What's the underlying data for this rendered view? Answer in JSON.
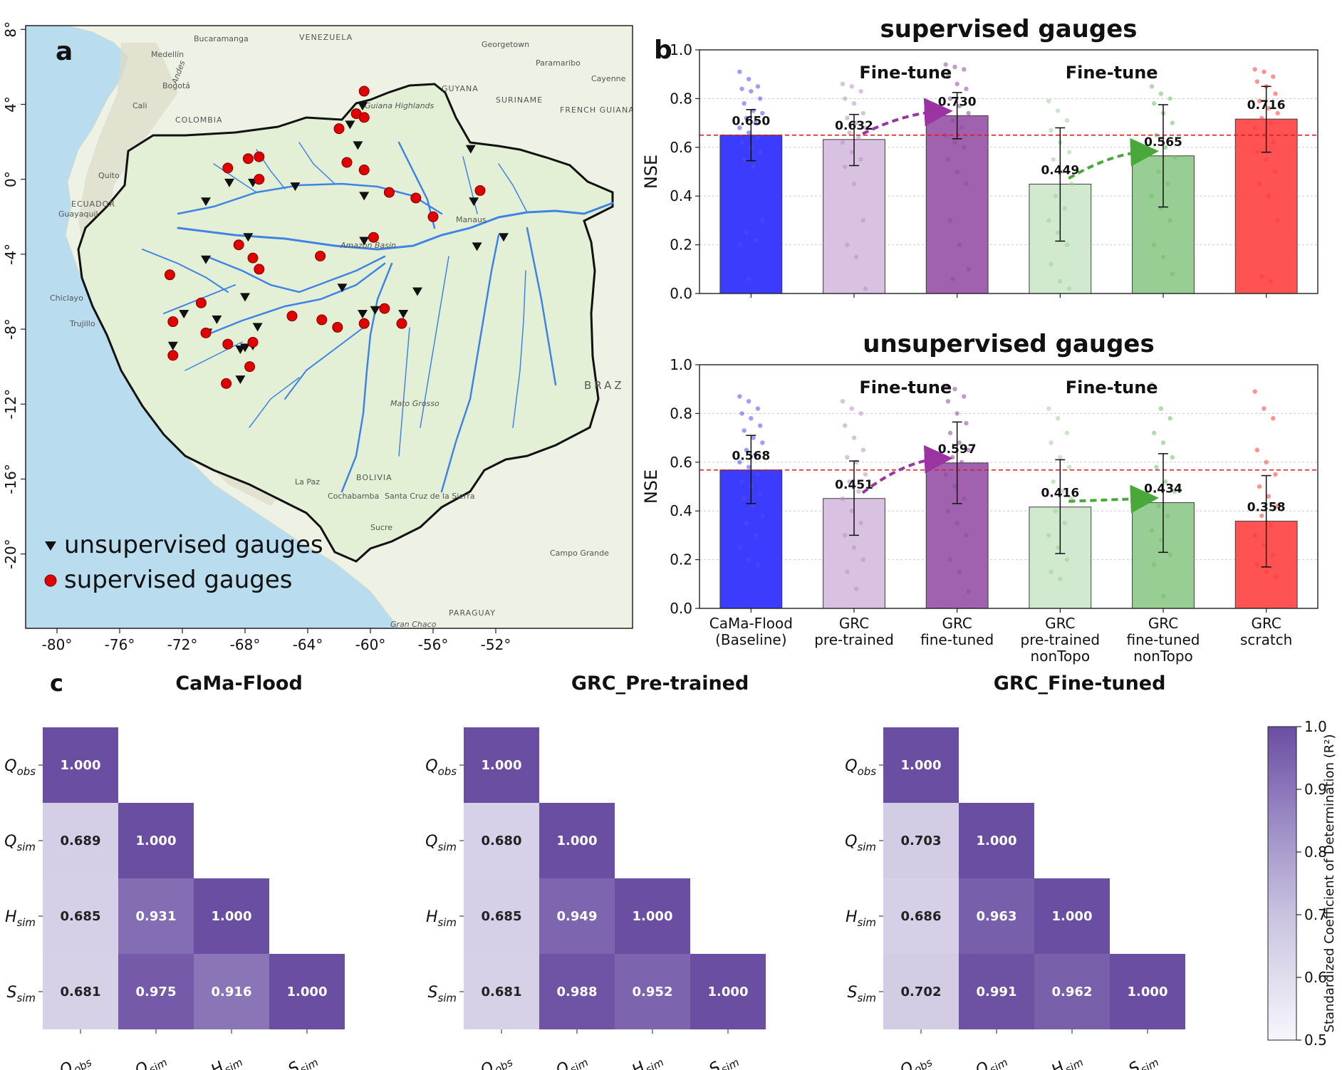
{
  "panel_labels": {
    "a": "a",
    "b": "b",
    "c": "c"
  },
  "colors": {
    "blue": "#3232ff",
    "lightpurple": "#d7bfe0",
    "purple": "#9b5aaa",
    "lightgreen": "#cfe8cd",
    "green": "#93cc8f",
    "red": "#ff4a4a",
    "heat_low": "#f2f1f7",
    "heat_high": "#6a4ea2",
    "arrow_purple": "#9b33a3",
    "arrow_green": "#4aa83a",
    "river": "#3f83e6",
    "basin_fill": "#e4f0d6",
    "ocean": "#b9dcef",
    "land": "#eef2e4"
  },
  "map": {
    "lon_ticks": [
      "-80°",
      "-76°",
      "-72°",
      "-68°",
      "-64°",
      "-60°",
      "-56°",
      "-52°"
    ],
    "lat_ticks": [
      "8°",
      "4°",
      "0°",
      "-4°",
      "-8°",
      "-12°",
      "-16°",
      "-20°"
    ],
    "place_names": [
      "VENEZUELA",
      "Bucaramanga",
      "Medellín",
      "Bogotá",
      "COLOMBIA",
      "Cali",
      "Quito",
      "ECUADOR",
      "Guayaquil",
      "Chiclayo",
      "Trujillo",
      "Georgetown",
      "Paramaribo",
      "Cayenne",
      "SURINAME",
      "FRENCH GUIANA",
      "GUYANA",
      "Manaus",
      "Amazon Basin",
      "La Paz",
      "Cochabamba",
      "Santa Cruz de la Sierra",
      "Sucre",
      "BOLIVIA",
      "Campo Grande",
      "PARAGUAY",
      "BRAZ",
      "Gran Chaco",
      "Andes",
      "Guiana Highlands",
      "Mato Grosso"
    ],
    "legend": [
      {
        "symbol": "triangle",
        "label": "unsupervised gauges"
      },
      {
        "symbol": "circle",
        "label": "supervised gauges"
      }
    ],
    "unsupervised_gauges": [
      [
        -69.0,
        -0.2
      ],
      [
        -70.5,
        -1.2
      ],
      [
        -67.5,
        -0.2
      ],
      [
        -64.8,
        -0.4
      ],
      [
        -61.3,
        2.9
      ],
      [
        -60.8,
        1.8
      ],
      [
        -60.4,
        -0.9
      ],
      [
        -60.4,
        -3.3
      ],
      [
        -53.2,
        -3.6
      ],
      [
        -51.5,
        -3.1
      ],
      [
        -67.8,
        -3.1
      ],
      [
        -70.5,
        -4.3
      ],
      [
        -68.0,
        -6.3
      ],
      [
        -69.8,
        -7.5
      ],
      [
        -70.4,
        -8.2
      ],
      [
        -71.9,
        -7.2
      ],
      [
        -67.2,
        -7.9
      ],
      [
        -68.0,
        -9.0
      ],
      [
        -68.3,
        -9.1
      ],
      [
        -67.5,
        -8.9
      ],
      [
        -72.6,
        -8.9
      ],
      [
        -68.3,
        -10.7
      ],
      [
        -61.8,
        -5.8
      ],
      [
        -60.5,
        -7.2
      ],
      [
        -59.7,
        -7.0
      ],
      [
        -57.0,
        -6.0
      ],
      [
        -57.9,
        -7.2
      ],
      [
        -53.4,
        -1.2
      ],
      [
        -53.6,
        1.6
      ],
      [
        -60.5,
        3.9
      ]
    ],
    "supervised_gauges": [
      [
        -60.4,
        4.7
      ],
      [
        -60.9,
        3.5
      ],
      [
        -60.4,
        3.3
      ],
      [
        -62.0,
        2.7
      ],
      [
        -61.5,
        0.9
      ],
      [
        -60.4,
        0.5
      ],
      [
        -69.1,
        0.6
      ],
      [
        -67.8,
        1.1
      ],
      [
        -67.1,
        1.2
      ],
      [
        -67.1,
        0.0
      ],
      [
        -58.8,
        -0.7
      ],
      [
        -57.1,
        -1.0
      ],
      [
        -56.0,
        -2.0
      ],
      [
        -53.0,
        -0.6
      ],
      [
        -59.8,
        -3.1
      ],
      [
        -63.2,
        -4.1
      ],
      [
        -68.4,
        -3.5
      ],
      [
        -67.5,
        -4.2
      ],
      [
        -67.1,
        -4.8
      ],
      [
        -72.8,
        -5.1
      ],
      [
        -70.8,
        -6.6
      ],
      [
        -72.6,
        -7.6
      ],
      [
        -70.5,
        -8.2
      ],
      [
        -69.1,
        -8.8
      ],
      [
        -67.5,
        -8.7
      ],
      [
        -72.6,
        -9.4
      ],
      [
        -67.7,
        -10.0
      ],
      [
        -69.2,
        -10.9
      ],
      [
        -65.0,
        -7.3
      ],
      [
        -63.1,
        -7.5
      ],
      [
        -62.1,
        -7.9
      ],
      [
        -60.4,
        -7.7
      ],
      [
        -59.1,
        -6.9
      ],
      [
        -58.0,
        -7.7
      ]
    ]
  },
  "chart_data": [
    {
      "type": "bar",
      "title": "supervised gauges",
      "ylabel": "NSE",
      "ylim": [
        0,
        1.0
      ],
      "yticks": [
        "0.0",
        "0.2",
        "0.4",
        "0.6",
        "0.8",
        "1.0"
      ],
      "categories": [
        "CaMa-Flood (Baseline)",
        "GRC pre-trained",
        "GRC fine-tuned",
        "GRC pre-trained nonTopo",
        "GRC fine-tuned nonTopo",
        "GRC scratch"
      ],
      "values": [
        0.65,
        0.632,
        0.73,
        0.449,
        0.565,
        0.716
      ],
      "value_labels": [
        "0.650",
        "0.632",
        "0.730",
        "0.449",
        "0.565",
        "0.716"
      ],
      "error_low": [
        0.545,
        0.525,
        0.635,
        0.215,
        0.355,
        0.58
      ],
      "error_high": [
        0.755,
        0.735,
        0.825,
        0.68,
        0.775,
        0.85
      ],
      "reference_line": 0.65,
      "annotations": [
        "Fine-tune",
        "Fine-tune"
      ],
      "points": [
        [
          0.91,
          0.88,
          0.85,
          0.84,
          0.83,
          0.8,
          0.78,
          0.75,
          0.74,
          0.72,
          0.7,
          0.68,
          0.66,
          0.64,
          0.62,
          0.6,
          0.58,
          0.55,
          0.52,
          0.3,
          0.25,
          0.22,
          0.2,
          0.06
        ],
        [
          0.86,
          0.85,
          0.83,
          0.8,
          0.78,
          0.74,
          0.72,
          0.7,
          0.68,
          0.66,
          0.64,
          0.62,
          0.58,
          0.55,
          0.52,
          0.45,
          0.3,
          0.2,
          0.15,
          0.02
        ],
        [
          0.94,
          0.93,
          0.92,
          0.89,
          0.86,
          0.84,
          0.8,
          0.77,
          0.74,
          0.71,
          0.68,
          0.65,
          0.62,
          0.6,
          0.55,
          0.5,
          0.45,
          0.3,
          0.2,
          0.1,
          0.06
        ],
        [
          0.79,
          0.75,
          0.71,
          0.67,
          0.62,
          0.58,
          0.55,
          0.5,
          0.45,
          0.4,
          0.35,
          0.3,
          0.25,
          0.2,
          0.12,
          0.05,
          0.02
        ],
        [
          0.85,
          0.82,
          0.8,
          0.78,
          0.74,
          0.7,
          0.65,
          0.6,
          0.56,
          0.5,
          0.45,
          0.4,
          0.35,
          0.3,
          0.2,
          0.15,
          0.08
        ],
        [
          0.92,
          0.91,
          0.89,
          0.87,
          0.85,
          0.82,
          0.79,
          0.76,
          0.74,
          0.72,
          0.7,
          0.68,
          0.65,
          0.62,
          0.58,
          0.55,
          0.5,
          0.45,
          0.4,
          0.3,
          0.07,
          0.05
        ]
      ]
    },
    {
      "type": "bar",
      "title": "unsupervised gauges",
      "ylabel": "NSE",
      "ylim": [
        0,
        1.0
      ],
      "yticks": [
        "0.0",
        "0.2",
        "0.4",
        "0.6",
        "0.8",
        "1.0"
      ],
      "categories": [
        "CaMa-Flood (Baseline)",
        "GRC pre-trained",
        "GRC fine-tuned",
        "GRC pre-trained nonTopo",
        "GRC fine-tuned nonTopo",
        "GRC scratch"
      ],
      "x_tick_lines": [
        [
          "CaMa-Flood",
          "(Baseline)"
        ],
        [
          "GRC",
          "pre-trained"
        ],
        [
          "GRC",
          "fine-tuned"
        ],
        [
          "GRC",
          "pre-trained",
          "nonTopo"
        ],
        [
          "GRC",
          "fine-tuned",
          "nonTopo"
        ],
        [
          "GRC",
          "scratch"
        ]
      ],
      "values": [
        0.568,
        0.451,
        0.597,
        0.416,
        0.434,
        0.358
      ],
      "value_labels": [
        "0.568",
        "0.451",
        "0.597",
        "0.416",
        "0.434",
        "0.358"
      ],
      "error_low": [
        0.43,
        0.3,
        0.43,
        0.225,
        0.23,
        0.17
      ],
      "error_high": [
        0.71,
        0.605,
        0.765,
        0.61,
        0.635,
        0.545
      ],
      "reference_line": 0.568,
      "annotations": [
        "Fine-tune",
        "Fine-tune"
      ],
      "points": [
        [
          0.87,
          0.85,
          0.82,
          0.8,
          0.78,
          0.75,
          0.73,
          0.7,
          0.68,
          0.65,
          0.63,
          0.6,
          0.58,
          0.55,
          0.52,
          0.5,
          0.47,
          0.45,
          0.42,
          0.38,
          0.35,
          0.3,
          0.25,
          0.2,
          0.18
        ],
        [
          0.85,
          0.82,
          0.8,
          0.75,
          0.7,
          0.65,
          0.62,
          0.6,
          0.55,
          0.52,
          0.48,
          0.45,
          0.4,
          0.35,
          0.3,
          0.25,
          0.2,
          0.15,
          0.08
        ],
        [
          0.91,
          0.9,
          0.87,
          0.85,
          0.8,
          0.76,
          0.72,
          0.68,
          0.65,
          0.62,
          0.6,
          0.55,
          0.5,
          0.45,
          0.4,
          0.35,
          0.3,
          0.2,
          0.15,
          0.07
        ],
        [
          0.82,
          0.78,
          0.72,
          0.68,
          0.62,
          0.58,
          0.52,
          0.48,
          0.45,
          0.4,
          0.35,
          0.3,
          0.25,
          0.2,
          0.15,
          0.12
        ],
        [
          0.92,
          0.82,
          0.78,
          0.72,
          0.68,
          0.62,
          0.58,
          0.52,
          0.48,
          0.42,
          0.38,
          0.32,
          0.28,
          0.22,
          0.18,
          0.05
        ],
        [
          0.89,
          0.82,
          0.78,
          0.65,
          0.6,
          0.55,
          0.5,
          0.46,
          0.42,
          0.38,
          0.34,
          0.3,
          0.26,
          0.22,
          0.18,
          0.15,
          0.13
        ]
      ]
    },
    {
      "type": "heatmap",
      "title": "CaMa-Flood",
      "labels": [
        "Q_obs",
        "Q_sim",
        "H_sim",
        "S_sim"
      ],
      "matrix": [
        [
          1.0
        ],
        [
          0.689,
          1.0
        ],
        [
          0.685,
          0.931,
          1.0
        ],
        [
          0.681,
          0.975,
          0.916,
          1.0
        ]
      ],
      "text": [
        [
          "1.000"
        ],
        [
          "0.689",
          "1.000"
        ],
        [
          "0.685",
          "0.931",
          "1.000"
        ],
        [
          "0.681",
          "0.975",
          "0.916",
          "1.000"
        ]
      ]
    },
    {
      "type": "heatmap",
      "title": "GRC_Pre-trained",
      "labels": [
        "Q_obs",
        "Q_sim",
        "H_sim",
        "S_sim"
      ],
      "matrix": [
        [
          1.0
        ],
        [
          0.68,
          1.0
        ],
        [
          0.685,
          0.949,
          1.0
        ],
        [
          0.681,
          0.988,
          0.952,
          1.0
        ]
      ],
      "text": [
        [
          "1.000"
        ],
        [
          "0.680",
          "1.000"
        ],
        [
          "0.685",
          "0.949",
          "1.000"
        ],
        [
          "0.681",
          "0.988",
          "0.952",
          "1.000"
        ]
      ]
    },
    {
      "type": "heatmap",
      "title": "GRC_Fine-tuned",
      "labels": [
        "Q_obs",
        "Q_sim",
        "H_sim",
        "S_sim"
      ],
      "matrix": [
        [
          1.0
        ],
        [
          0.703,
          1.0
        ],
        [
          0.686,
          0.963,
          1.0
        ],
        [
          0.702,
          0.991,
          0.962,
          1.0
        ]
      ],
      "text": [
        [
          "1.000"
        ],
        [
          "0.703",
          "1.000"
        ],
        [
          "0.686",
          "0.963",
          "1.000"
        ],
        [
          "0.702",
          "0.991",
          "0.962",
          "1.000"
        ]
      ]
    }
  ],
  "colorbar": {
    "label": "Standardized Coefficient of Determination (R²)",
    "range": [
      0.5,
      1.0
    ],
    "ticks": [
      "0.5",
      "0.6",
      "0.7",
      "0.8",
      "0.9",
      "1.0"
    ]
  }
}
